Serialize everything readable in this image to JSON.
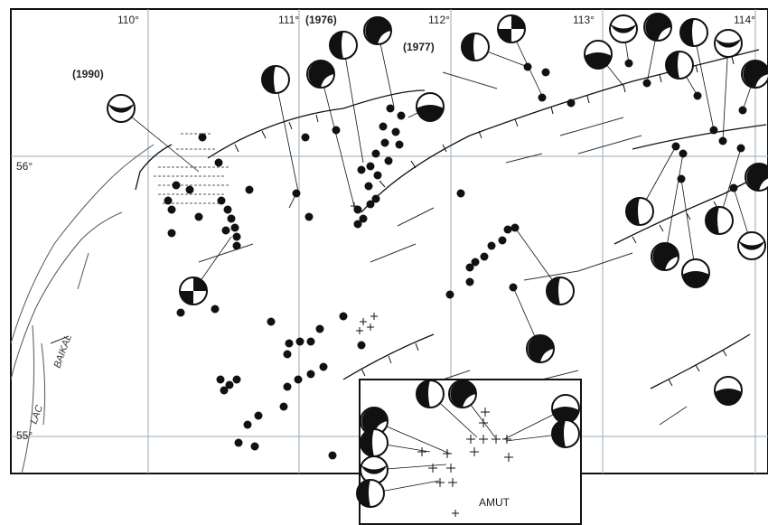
{
  "map": {
    "longitude_labels": [
      "110°",
      "111°",
      "112°",
      "113°",
      "114°"
    ],
    "latitude_labels": [
      "56°",
      "55°"
    ],
    "year_labels": [
      "(1990)",
      "(1976)",
      "(1977)"
    ],
    "lake_labels": [
      "BAIKAL",
      "LAC"
    ],
    "inset_label": "AMUT"
  }
}
